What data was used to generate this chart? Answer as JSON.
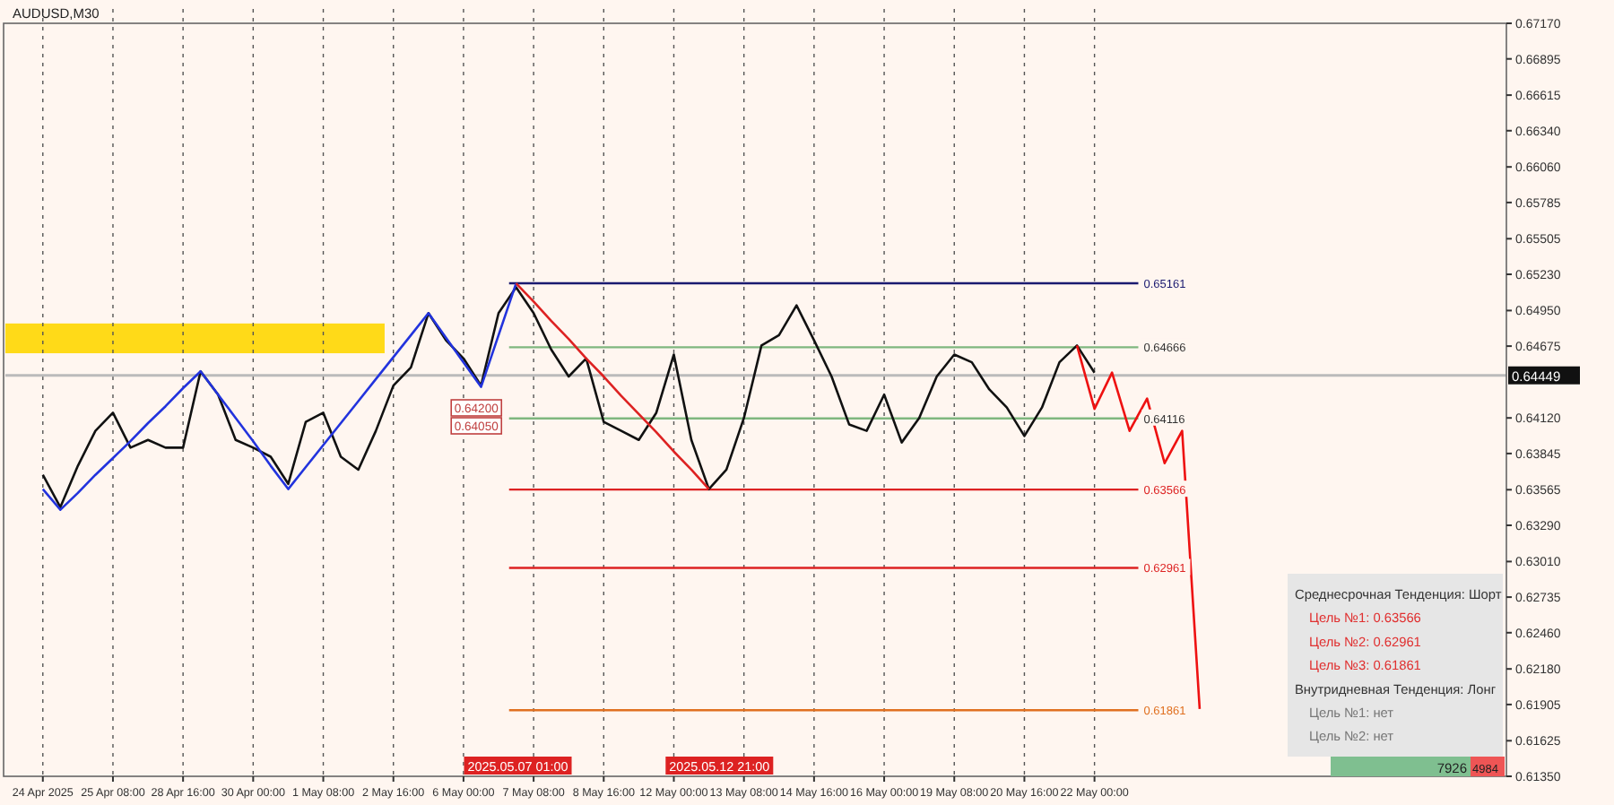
{
  "chart_data": {
    "type": "line",
    "title": "AUDUSD,M30",
    "categories": [
      "24 Apr 2025",
      null,
      null,
      null,
      "25 Apr 08:00",
      null,
      null,
      null,
      "28 Apr 16:00",
      null,
      null,
      null,
      "30 Apr 00:00",
      null,
      null,
      null,
      "1 May 08:00",
      null,
      null,
      null,
      "2 May 16:00",
      null,
      null,
      null,
      "6 May 00:00",
      null,
      null,
      null,
      "7 May 08:00",
      null,
      null,
      null,
      "8 May 16:00",
      null,
      null,
      null,
      "12 May 00:00",
      null,
      null,
      null,
      "13 May 08:00",
      null,
      null,
      null,
      "14 May 16:00",
      null,
      null,
      null,
      "16 May 00:00",
      null,
      null,
      null,
      "19 May 08:00",
      null,
      null,
      null,
      "20 May 16:00",
      null,
      null,
      null,
      "22 May 00:00",
      null,
      null,
      null,
      null,
      null,
      null,
      null,
      null,
      null,
      null,
      null,
      null,
      null,
      null,
      null,
      null,
      null,
      null,
      null,
      null,
      null,
      null,
      null
    ],
    "ylim": [
      0.6135,
      0.6717
    ],
    "yticks": [
      {
        "value": 0.6717,
        "label": "0.67170"
      },
      {
        "value": 0.66895,
        "label": "0.66895"
      },
      {
        "value": 0.66615,
        "label": "0.66615"
      },
      {
        "value": 0.6634,
        "label": "0.66340"
      },
      {
        "value": 0.6606,
        "label": "0.66060"
      },
      {
        "value": 0.65785,
        "label": "0.65785"
      },
      {
        "value": 0.65505,
        "label": "0.65505"
      },
      {
        "value": 0.6523,
        "label": "0.65230"
      },
      {
        "value": 0.6495,
        "label": "0.64950"
      },
      {
        "value": 0.64675,
        "label": "0.64675"
      },
      {
        "value": 0.6412,
        "label": "0.64120"
      },
      {
        "value": 0.63845,
        "label": "0.63845"
      },
      {
        "value": 0.63565,
        "label": "0.63565"
      },
      {
        "value": 0.6329,
        "label": "0.63290"
      },
      {
        "value": 0.6301,
        "label": "0.63010"
      },
      {
        "value": 0.62735,
        "label": "0.62735"
      },
      {
        "value": 0.6246,
        "label": "0.62460"
      },
      {
        "value": 0.6218,
        "label": "0.62180"
      },
      {
        "value": 0.61905,
        "label": "0.61905"
      },
      {
        "value": 0.61625,
        "label": "0.61625"
      },
      {
        "value": 0.6135,
        "label": "0.61350"
      }
    ],
    "grid": "x",
    "series": [
      {
        "color": "#111111",
        "values": [
          0.6368,
          0.6343,
          0.6375,
          0.6402,
          0.6416,
          0.6389,
          0.6395,
          0.6389,
          0.6389,
          0.6448,
          0.643,
          0.6395,
          0.6389,
          0.6382,
          0.6361,
          0.6409,
          0.6416,
          0.6382,
          0.6372,
          0.6402,
          0.6437,
          0.6451,
          0.6493,
          0.6472,
          0.6458,
          0.6437,
          0.6493,
          0.6513,
          0.6493,
          0.6465,
          0.6444,
          0.6458,
          0.6409,
          0.6402,
          0.6395,
          0.6416,
          0.6461,
          0.6395,
          0.6357,
          0.6372,
          0.6412,
          0.6468,
          0.6476,
          0.6499,
          0.6472,
          0.6444,
          0.6407,
          0.6402,
          0.643,
          0.6393,
          0.6412,
          0.6444,
          0.6461,
          0.6455,
          0.6434,
          0.642,
          0.6398,
          0.642,
          0.6455,
          0.6468,
          0.6447,
          null,
          null,
          null,
          null,
          null,
          null,
          null,
          null,
          null,
          null,
          null,
          null,
          null,
          null,
          null,
          null,
          null,
          null,
          null,
          null,
          null,
          null,
          null
        ]
      },
      {
        "color": "#2233dd",
        "values": [
          0.6357,
          0.6341,
          0.6354,
          0.6368,
          0.6381,
          0.6394,
          0.6408,
          0.6421,
          0.6435,
          0.6448,
          0.643,
          0.6412,
          0.6394,
          0.6375,
          0.6357,
          0.6374,
          0.6391,
          0.6408,
          0.6425,
          0.6442,
          0.6459,
          0.6476,
          0.6493,
          0.6474,
          0.6455,
          0.6436,
          0.6476,
          0.6516,
          null,
          null,
          null,
          null,
          null,
          null,
          null,
          null,
          null,
          null,
          null,
          null,
          null,
          null,
          null,
          null,
          null,
          null,
          null,
          null,
          null,
          null,
          null,
          null,
          null,
          null,
          null,
          null,
          null,
          null,
          null,
          null,
          null,
          null,
          null,
          null,
          null,
          null,
          null,
          null,
          null,
          null,
          null,
          null,
          null,
          null,
          null,
          null,
          null,
          null,
          null,
          null,
          null,
          null,
          null,
          null
        ]
      },
      {
        "color": "#dd2222",
        "values": [
          null,
          null,
          null,
          null,
          null,
          null,
          null,
          null,
          null,
          null,
          null,
          null,
          null,
          null,
          null,
          null,
          null,
          null,
          null,
          null,
          null,
          null,
          null,
          null,
          null,
          null,
          null,
          0.6516,
          0.6502,
          0.6487,
          0.6473,
          0.6458,
          0.6444,
          0.6429,
          0.6415,
          0.6401,
          0.6386,
          0.6372,
          0.6357,
          null,
          null,
          null,
          null,
          null,
          null,
          null,
          null,
          null,
          null,
          null,
          null,
          null,
          null,
          null,
          null,
          null,
          null,
          null,
          null,
          null,
          null,
          null,
          null,
          null,
          null,
          null,
          null,
          null,
          null,
          null,
          null,
          null,
          null,
          null,
          null,
          null,
          null,
          null,
          null,
          null,
          null,
          null,
          null,
          null
        ]
      },
      {
        "color": "#ee1111",
        "values": [
          null,
          null,
          null,
          null,
          null,
          null,
          null,
          null,
          null,
          null,
          null,
          null,
          null,
          null,
          null,
          null,
          null,
          null,
          null,
          null,
          null,
          null,
          null,
          null,
          null,
          null,
          null,
          null,
          null,
          null,
          null,
          null,
          null,
          null,
          null,
          null,
          null,
          null,
          null,
          null,
          null,
          null,
          null,
          null,
          null,
          null,
          null,
          null,
          null,
          null,
          null,
          null,
          null,
          null,
          null,
          null,
          null,
          null,
          null,
          0.6468,
          0.6419,
          0.6447,
          0.6402,
          0.6427,
          0.6377,
          0.6402,
          0.6187,
          null,
          null,
          null,
          null,
          null,
          null,
          null,
          null,
          null,
          null,
          null,
          null,
          null,
          null,
          null,
          null,
          null
        ]
      }
    ],
    "ref_lines": [
      {
        "axis": "y",
        "value": 0.65161,
        "label": "0.65161",
        "color": "#1a1a70"
      },
      {
        "axis": "y",
        "value": 0.64666,
        "label": "0.64666",
        "color": "#7fb77f"
      },
      {
        "axis": "y",
        "value": 0.64449,
        "label": "0.64449",
        "color": "#bbbbbb"
      },
      {
        "axis": "y",
        "value": 0.64116,
        "label": "0.64116",
        "color": "#7fb77f"
      },
      {
        "axis": "y",
        "value": 0.63566,
        "label": "0.63566",
        "color": "#dd2222"
      },
      {
        "axis": "y",
        "value": 0.62961,
        "label": "0.62961",
        "color": "#dd2222"
      },
      {
        "axis": "y",
        "value": 0.61861,
        "label": "0.61861",
        "color": "#e07020"
      }
    ],
    "bands": [
      {
        "axis": "y",
        "from": 0.6462,
        "to": 0.6485,
        "color": "#ffd700"
      }
    ],
    "annotations": [
      "Среднесрочная Тенденция: Шорт",
      "Цель №1: 0.63566",
      "Цель №2: 0.62961",
      "Цель №3: 0.61861",
      "Внутридневная Тенденция: Лонг",
      "Цель №1: нет",
      "Цель №2: нет",
      "7926",
      "4984",
      "0.64200",
      "0.64050",
      "2025.05.07 01:00",
      "2025.05.12 21:00"
    ]
  }
}
